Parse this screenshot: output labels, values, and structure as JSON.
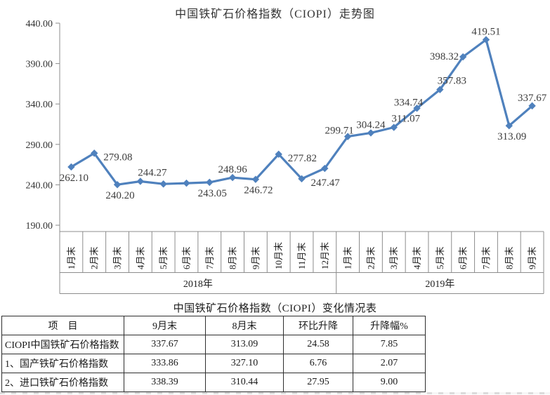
{
  "page": {
    "background": "#ffffff"
  },
  "chart_data": {
    "type": "line",
    "title": "中国铁矿石价格指数（CIOPI）走势图",
    "categories": [
      "1月末",
      "2月末",
      "3月末",
      "4月末",
      "5月末",
      "6月末",
      "7月末",
      "8月末",
      "9月末",
      "10月末",
      "11月末",
      "12月末",
      "1月末",
      "2月末",
      "3月末",
      "4月末",
      "5月末",
      "6月末",
      "7月末",
      "8月末",
      "9月末"
    ],
    "year_groups": [
      {
        "label": "2018年",
        "count": 12
      },
      {
        "label": "2019年",
        "count": 9
      }
    ],
    "values": [
      262.1,
      279.08,
      240.2,
      244.27,
      241.0,
      242.0,
      243.05,
      248.96,
      246.72,
      277.82,
      247.47,
      260.3,
      299.71,
      304.24,
      311.07,
      334.74,
      357.83,
      398.32,
      419.51,
      313.09,
      337.67
    ],
    "data_labels": [
      "262.10",
      "279.08",
      "240.20",
      "244.27",
      null,
      null,
      "243.05",
      "248.96",
      "246.72",
      "277.82",
      "247.47",
      null,
      "299.71",
      "304.24",
      "311.07",
      "334.74",
      "357.83",
      "398.32",
      "419.51",
      "313.09",
      "337.67"
    ],
    "label_positions": [
      "below",
      "right",
      "below",
      "above-r",
      null,
      null,
      "below",
      "above",
      "below",
      "right",
      "right",
      null,
      "above-l",
      "above",
      "above-r",
      "above-l",
      "above-r",
      "left",
      "above",
      "below",
      "above"
    ],
    "estimated_unlabeled_points": {
      "2018-5月末": 241.0,
      "2018-6月末": 242.0,
      "2018-12月末": 260.3
    },
    "ylim": [
      190,
      440
    ],
    "ytick_step": 50,
    "y_tick_labels": [
      "440.00",
      "390.00",
      "340.00",
      "290.00",
      "240.00",
      "190.00"
    ],
    "grid": false,
    "legend": "none",
    "line_color": "#4f81bd",
    "marker": "diamond",
    "axis_color": "#8c8c8c",
    "label_text_color": "#3d3d3d"
  },
  "table": {
    "title": "中国铁矿石价格指数（CIOPI）变化情况表",
    "columns": [
      "项　目",
      "9月末",
      "8月末",
      "环比升降",
      "升降幅%"
    ],
    "rows": [
      [
        "CIOPI中国铁矿石价格指数",
        "337.67",
        "313.09",
        "24.58",
        "7.85"
      ],
      [
        "1、国产铁矿石价格指数",
        "333.86",
        "327.10",
        "6.76",
        "2.07"
      ],
      [
        "2、进口铁矿石价格指数",
        "338.39",
        "310.44",
        "27.95",
        "9.00"
      ]
    ]
  }
}
